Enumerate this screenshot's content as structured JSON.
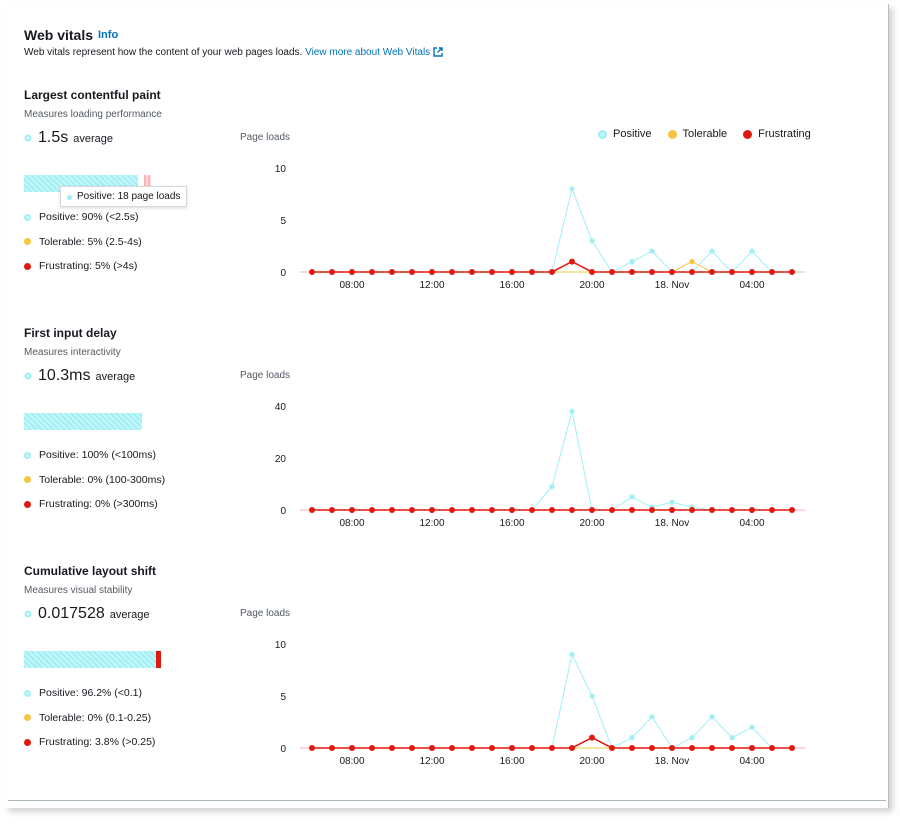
{
  "header": {
    "title": "Web vitals",
    "info": "Info",
    "description": "Web vitals represent how the content of your web pages loads.",
    "link": "View more about Web Vitals"
  },
  "legend": {
    "positive": "Positive",
    "tolerable": "Tolerable",
    "frustrating": "Frustrating"
  },
  "colors": {
    "positive": "#9ff0f5",
    "tolerable": "#f5c542",
    "frustrating": "#e0190f"
  },
  "x_ticks": [
    "08:00",
    "12:00",
    "16:00",
    "20:00",
    "18. Nov",
    "04:00"
  ],
  "y_axis_title": "Page loads",
  "sections": [
    {
      "title": "Largest contentful paint",
      "subtitle": "Measures loading performance",
      "avg_value": "1.5s",
      "avg_unit": "average",
      "bar": {
        "positive": 0.9,
        "tolerable": 0.05,
        "frustrating": 0.05
      },
      "tooltip": "Positive: 18 page loads",
      "items": [
        "Positive: 90% (<2.5s)",
        "Tolerable: 5% (2.5-4s)",
        "Frustrating: 5% (>4s)"
      ]
    },
    {
      "title": "First input delay",
      "subtitle": "Measures interactivity",
      "avg_value": "10.3ms",
      "avg_unit": "average",
      "bar": {
        "positive": 1.0,
        "tolerable": 0,
        "frustrating": 0
      },
      "items": [
        "Positive: 100% (<100ms)",
        "Tolerable: 0% (100-300ms)",
        "Frustrating: 0% (>300ms)"
      ]
    },
    {
      "title": "Cumulative layout shift",
      "subtitle": "Measures visual stability",
      "avg_value": "0.017528",
      "avg_unit": "average",
      "bar": {
        "positive": 0.962,
        "tolerable": 0,
        "frustrating": 0.038
      },
      "items": [
        "Positive: 96.2% (<0.1)",
        "Tolerable: 0% (0.1-0.25)",
        "Frustrating: 3.8% (>0.25)"
      ]
    }
  ],
  "chart_data": [
    {
      "type": "line",
      "ylabel": "Page loads",
      "yticks": [
        0,
        5,
        10
      ],
      "ylim": [
        0,
        10
      ],
      "x_tick_labels": [
        "08:00",
        "12:00",
        "16:00",
        "20:00",
        "18. Nov",
        "04:00"
      ],
      "series": [
        {
          "name": "Positive",
          "values": [
            0,
            0,
            0,
            0,
            0,
            0,
            0,
            0,
            0,
            0,
            0,
            0,
            0,
            8,
            3,
            0,
            1,
            2,
            0,
            0,
            2,
            0,
            2,
            0,
            0
          ]
        },
        {
          "name": "Tolerable",
          "values": [
            0,
            0,
            0,
            0,
            0,
            0,
            0,
            0,
            0,
            0,
            0,
            0,
            0,
            0,
            0,
            0,
            0,
            0,
            0,
            1,
            0,
            0,
            0,
            0,
            0
          ]
        },
        {
          "name": "Frustrating",
          "values": [
            0,
            0,
            0,
            0,
            0,
            0,
            0,
            0,
            0,
            0,
            0,
            0,
            0,
            1,
            0,
            0,
            0,
            0,
            0,
            0,
            0,
            0,
            0,
            0,
            0
          ]
        }
      ]
    },
    {
      "type": "line",
      "ylabel": "Page loads",
      "yticks": [
        0,
        20,
        40
      ],
      "ylim": [
        0,
        40
      ],
      "x_tick_labels": [
        "08:00",
        "12:00",
        "16:00",
        "20:00",
        "18. Nov",
        "04:00"
      ],
      "series": [
        {
          "name": "Positive",
          "values": [
            0,
            0,
            0,
            0,
            0,
            0,
            0,
            0,
            0,
            0,
            0,
            0,
            9,
            38,
            0,
            0,
            5,
            1,
            3,
            1,
            0,
            0,
            0,
            0,
            0
          ]
        },
        {
          "name": "Tolerable",
          "values": [
            0,
            0,
            0,
            0,
            0,
            0,
            0,
            0,
            0,
            0,
            0,
            0,
            0,
            0,
            0,
            0,
            0,
            0,
            0,
            0,
            0,
            0,
            0,
            0,
            0
          ]
        },
        {
          "name": "Frustrating",
          "values": [
            0,
            0,
            0,
            0,
            0,
            0,
            0,
            0,
            0,
            0,
            0,
            0,
            0,
            0,
            0,
            0,
            0,
            0,
            0,
            0,
            0,
            0,
            0,
            0,
            0
          ]
        }
      ]
    },
    {
      "type": "line",
      "ylabel": "Page loads",
      "yticks": [
        0,
        5,
        10
      ],
      "ylim": [
        0,
        10
      ],
      "x_tick_labels": [
        "08:00",
        "12:00",
        "16:00",
        "20:00",
        "18. Nov",
        "04:00"
      ],
      "series": [
        {
          "name": "Positive",
          "values": [
            0,
            0,
            0,
            0,
            0,
            0,
            0,
            0,
            0,
            0,
            0,
            0,
            0,
            9,
            5,
            0,
            1,
            3,
            0,
            1,
            3,
            1,
            2,
            0,
            0
          ]
        },
        {
          "name": "Tolerable",
          "values": [
            0,
            0,
            0,
            0,
            0,
            0,
            0,
            0,
            0,
            0,
            0,
            0,
            0,
            0,
            0,
            0,
            0,
            0,
            0,
            0,
            0,
            0,
            0,
            0,
            0
          ]
        },
        {
          "name": "Frustrating",
          "values": [
            0,
            0,
            0,
            0,
            0,
            0,
            0,
            0,
            0,
            0,
            0,
            0,
            0,
            0,
            1,
            0,
            0,
            0,
            0,
            0,
            0,
            0,
            0,
            0,
            0
          ]
        }
      ]
    }
  ]
}
